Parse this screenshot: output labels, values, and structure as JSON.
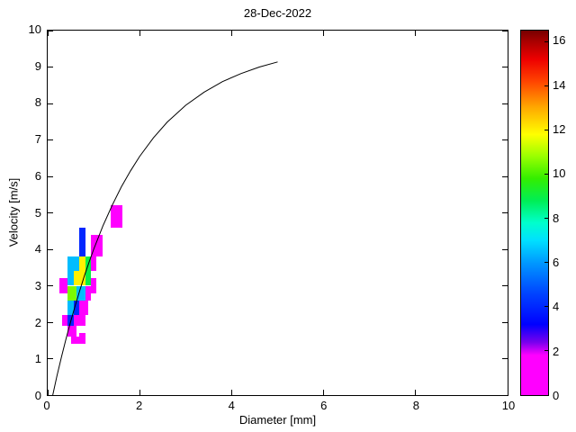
{
  "figure": {
    "background": "#ffffff"
  },
  "chart_data": {
    "type": "heatmap",
    "title": "28-Dec-2022",
    "xlabel": "Diameter [mm]",
    "ylabel": "Velocity [m/s]",
    "xlim": [
      0,
      10
    ],
    "ylim": [
      0,
      10
    ],
    "x_ticks": [
      0,
      2,
      4,
      6,
      8,
      10
    ],
    "y_ticks": [
      0,
      1,
      2,
      3,
      4,
      5,
      6,
      7,
      8,
      9,
      10
    ],
    "grid": false,
    "legend": "none",
    "colorbar": {
      "min": 0,
      "max": 16.5,
      "ticks": [
        0,
        2,
        4,
        6,
        8,
        10,
        12,
        14,
        16
      ],
      "stops": [
        [
          0,
          "#ff00ff"
        ],
        [
          1.8,
          "#ff00ff"
        ],
        [
          2.4,
          "#7700ee"
        ],
        [
          3.2,
          "#0000ff"
        ],
        [
          4.6,
          "#0044ff"
        ],
        [
          6.0,
          "#0099ff"
        ],
        [
          7.0,
          "#00e0ff"
        ],
        [
          7.8,
          "#00ffcc"
        ],
        [
          8.8,
          "#00ee55"
        ],
        [
          9.8,
          "#33ee00"
        ],
        [
          10.8,
          "#99ff00"
        ],
        [
          11.8,
          "#ffff00"
        ],
        [
          13.0,
          "#ffaa00"
        ],
        [
          14.2,
          "#ff4400"
        ],
        [
          15.2,
          "#ee0000"
        ],
        [
          16.0,
          "#aa0000"
        ],
        [
          16.5,
          "#770000"
        ]
      ]
    },
    "cells": [
      {
        "d": [
          1.375,
          1.625
        ],
        "v": [
          4.6,
          5.2
        ],
        "value": 1
      },
      {
        "d": [
          0.6875,
          0.8125
        ],
        "v": [
          3.8,
          4.6
        ],
        "value": 4
      },
      {
        "d": [
          0.9375,
          1.1875
        ],
        "v": [
          3.8,
          4.4
        ],
        "value": 1
      },
      {
        "d": [
          0.4375,
          0.6875
        ],
        "v": [
          3.4,
          3.8
        ],
        "value": 6.5
      },
      {
        "d": [
          0.6875,
          0.8125
        ],
        "v": [
          3.4,
          3.8
        ],
        "value": 12
      },
      {
        "d": [
          0.8125,
          0.9375
        ],
        "v": [
          3.0,
          3.8
        ],
        "value": 9
      },
      {
        "d": [
          0.9375,
          1.0625
        ],
        "v": [
          3.4,
          3.8
        ],
        "value": 1
      },
      {
        "d": [
          0.4375,
          0.5625
        ],
        "v": [
          3.0,
          3.4
        ],
        "value": 6.5
      },
      {
        "d": [
          0.5625,
          0.8125
        ],
        "v": [
          3.0,
          3.4
        ],
        "value": 12
      },
      {
        "d": [
          0.9375,
          1.0625
        ],
        "v": [
          2.8,
          3.2
        ],
        "value": 1
      },
      {
        "d": [
          0.25,
          0.4375
        ],
        "v": [
          2.8,
          3.2
        ],
        "value": 1
      },
      {
        "d": [
          0.4375,
          0.625
        ],
        "v": [
          2.6,
          3.0
        ],
        "value": 10.5
      },
      {
        "d": [
          0.625,
          0.8125
        ],
        "v": [
          2.6,
          3.0
        ],
        "value": 6.5
      },
      {
        "d": [
          0.8125,
          0.9375
        ],
        "v": [
          2.6,
          3.0
        ],
        "value": 1
      },
      {
        "d": [
          0.4375,
          0.5625
        ],
        "v": [
          2.2,
          2.6
        ],
        "value": 6.5
      },
      {
        "d": [
          0.5625,
          0.6875
        ],
        "v": [
          2.2,
          2.6
        ],
        "value": 4
      },
      {
        "d": [
          0.6875,
          0.875
        ],
        "v": [
          2.2,
          2.6
        ],
        "value": 1
      },
      {
        "d": [
          0.3125,
          0.4375
        ],
        "v": [
          1.9,
          2.2
        ],
        "value": 1
      },
      {
        "d": [
          0.4375,
          0.5625
        ],
        "v": [
          1.9,
          2.2
        ],
        "value": 4
      },
      {
        "d": [
          0.5625,
          0.8125
        ],
        "v": [
          1.9,
          2.2
        ],
        "value": 1
      },
      {
        "d": [
          0.4375,
          0.625
        ],
        "v": [
          1.6,
          1.9
        ],
        "value": 1
      },
      {
        "d": [
          0.6875,
          0.8125
        ],
        "v": [
          1.4,
          1.7
        ],
        "value": 1
      },
      {
        "d": [
          0.5,
          0.6875
        ],
        "v": [
          1.4,
          1.6
        ],
        "value": 1
      }
    ],
    "curve": {
      "name": "terminal-velocity-curve",
      "color": "#000000",
      "d": [
        0.11,
        0.2,
        0.3,
        0.4,
        0.5,
        0.6,
        0.7,
        0.8,
        0.9,
        1.0,
        1.2,
        1.4,
        1.6,
        1.8,
        2.0,
        2.3,
        2.6,
        3.0,
        3.4,
        3.8,
        4.2,
        4.6,
        5.0
      ],
      "v": [
        0,
        0.52,
        1.05,
        1.55,
        2.02,
        2.46,
        2.88,
        3.28,
        3.65,
        4.0,
        4.64,
        5.2,
        5.71,
        6.15,
        6.55,
        7.06,
        7.49,
        7.95,
        8.31,
        8.6,
        8.82,
        9.0,
        9.14
      ]
    }
  }
}
